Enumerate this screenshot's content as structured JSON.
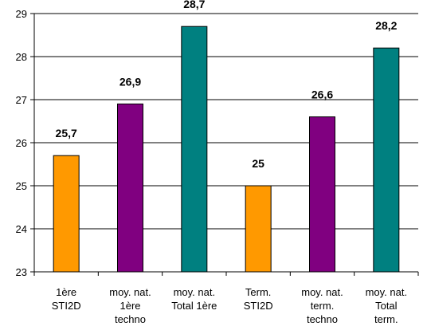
{
  "chart_data": {
    "type": "bar",
    "categories": [
      [
        "1ère",
        "STI2D"
      ],
      [
        "moy. nat.",
        "1ère",
        "techno"
      ],
      [
        "moy. nat.",
        "Total 1ère"
      ],
      [
        "Term.",
        "STI2D"
      ],
      [
        "moy. nat.",
        "term.",
        "techno"
      ],
      [
        "moy. nat.",
        "Total",
        "term."
      ]
    ],
    "values": [
      25.7,
      26.9,
      28.7,
      25,
      26.6,
      28.2
    ],
    "value_labels": [
      "25,7",
      "26,9",
      "28,7",
      "25",
      "26,6",
      "28,2"
    ],
    "bar_colors": [
      "#FF9900",
      "#800080",
      "#008080",
      "#FF9900",
      "#800080",
      "#008080"
    ],
    "ylim": [
      23,
      29
    ],
    "yticks": [
      23,
      24,
      25,
      26,
      27,
      28,
      29
    ],
    "grid": true,
    "legend": "none",
    "title": "",
    "xlabel": "",
    "ylabel": ""
  }
}
